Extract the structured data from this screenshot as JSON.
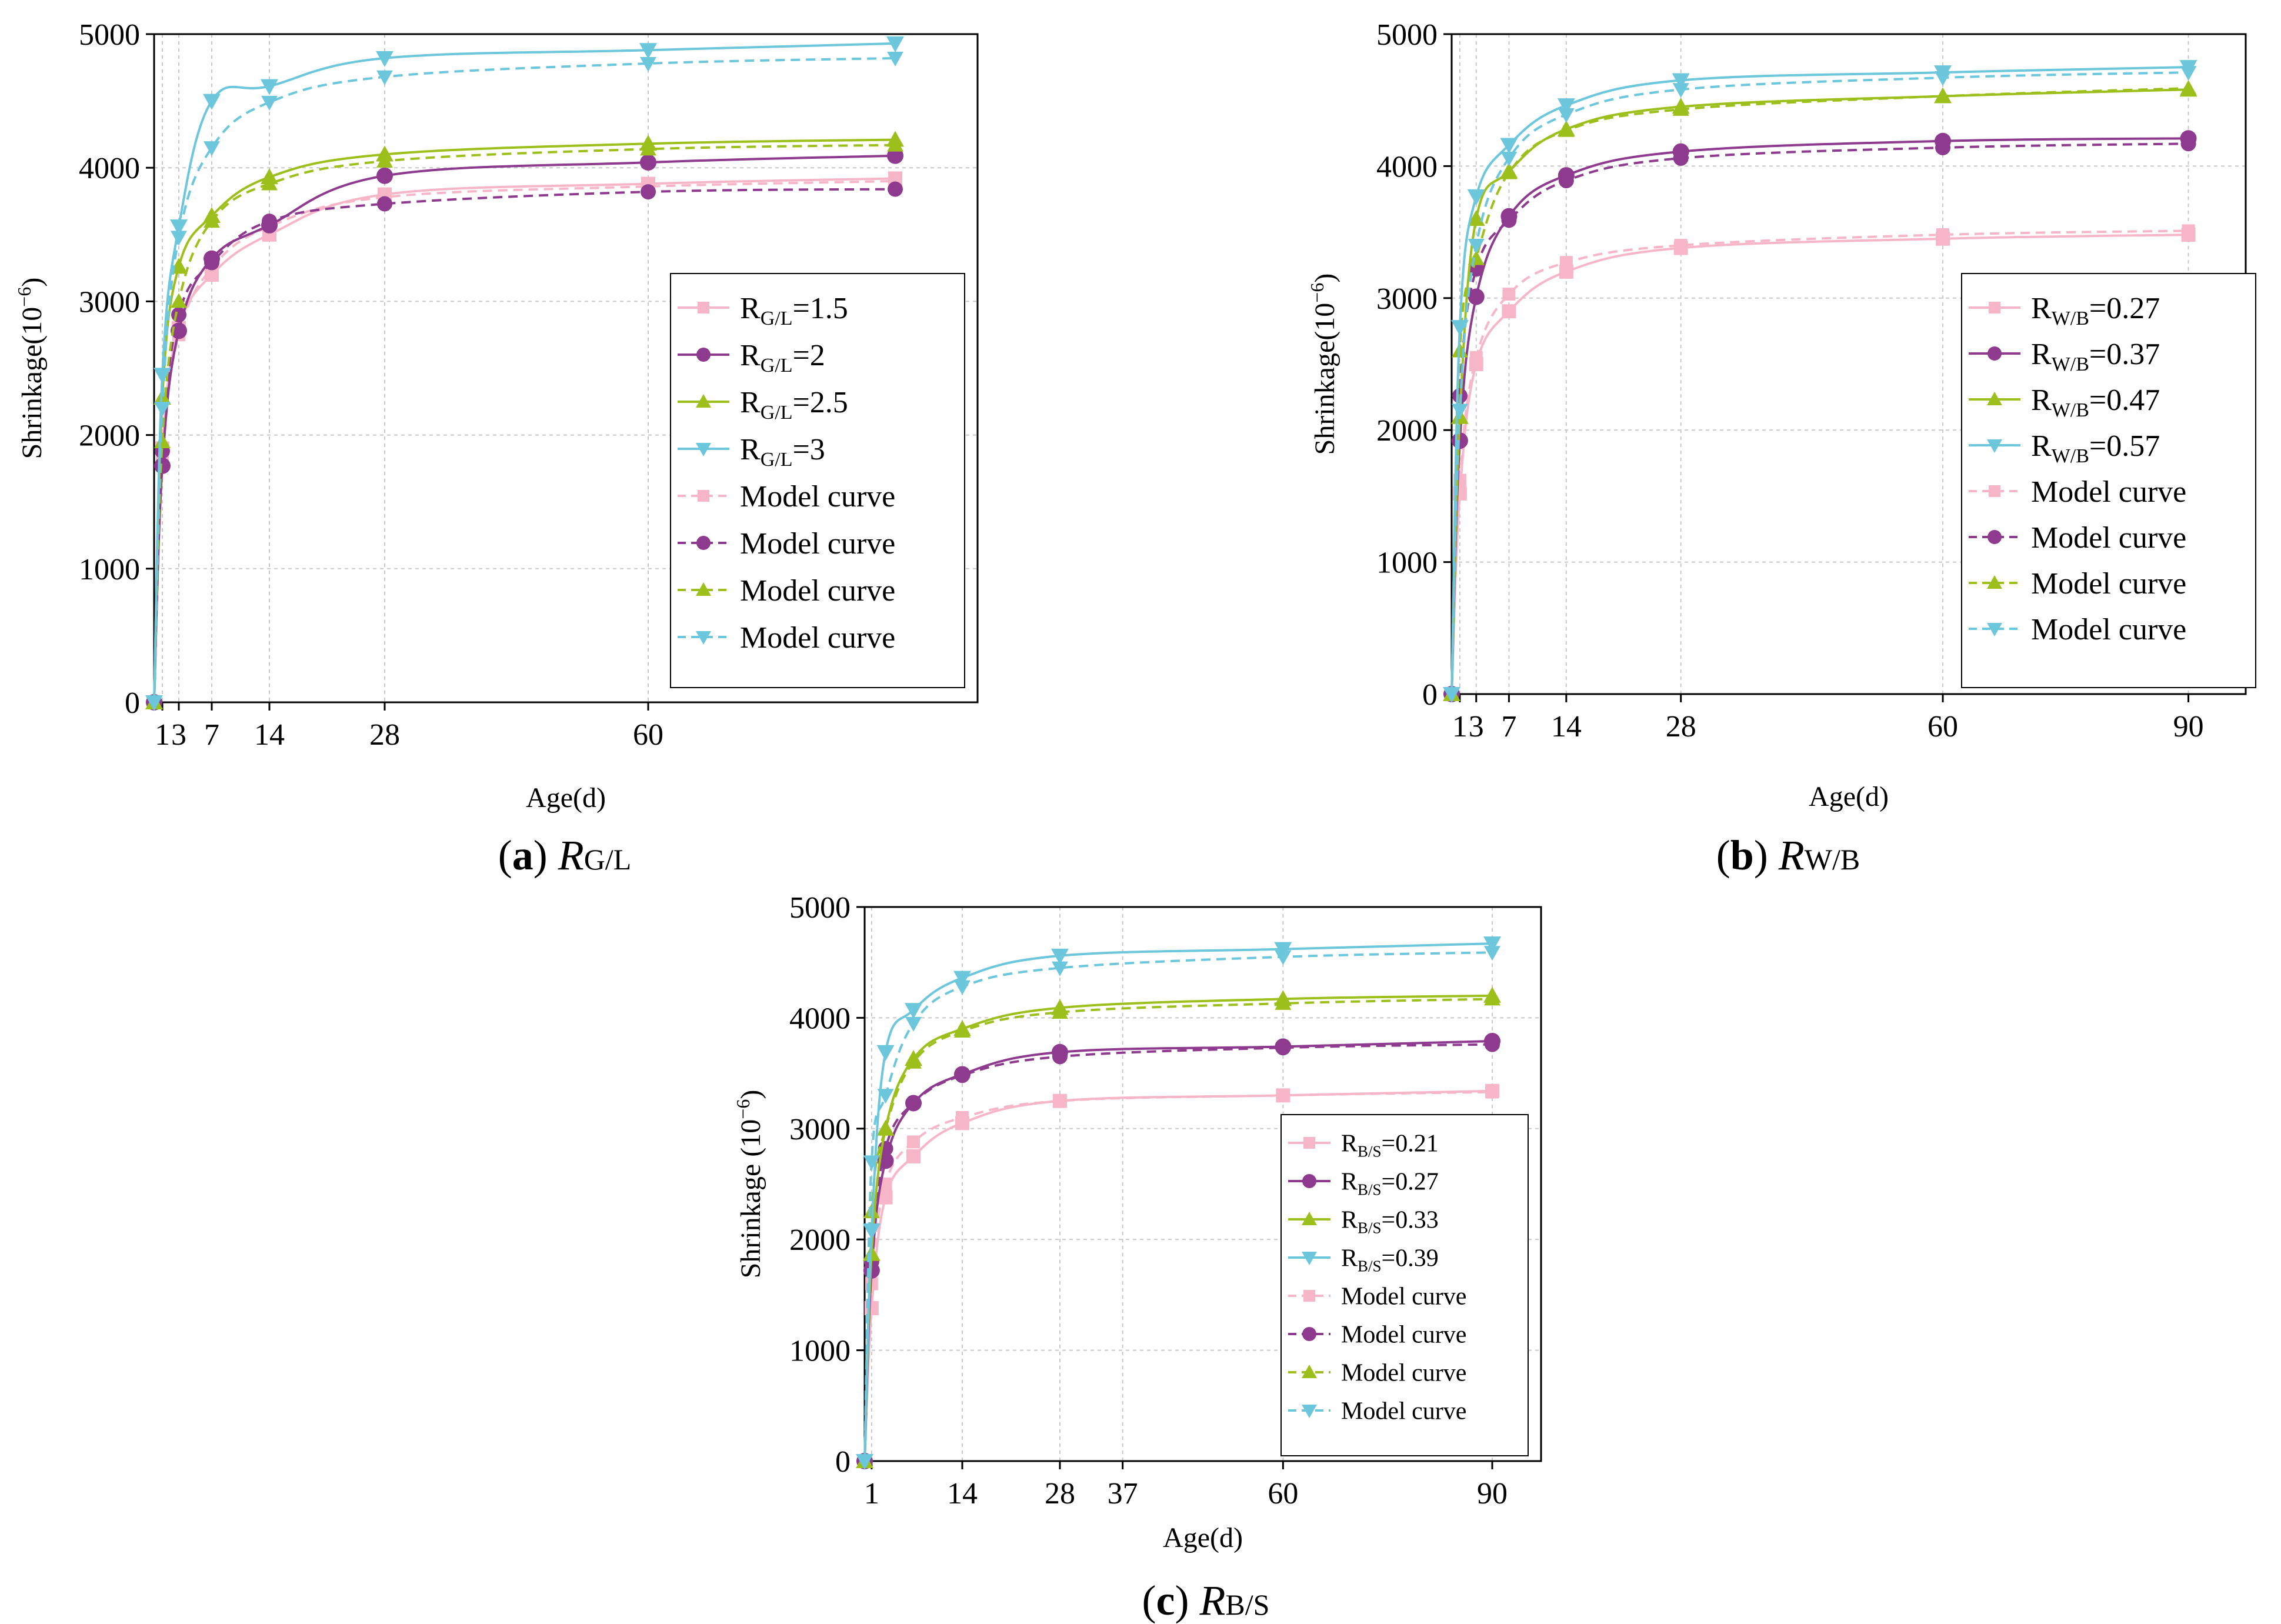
{
  "chart_data": [
    {
      "type": "line",
      "id": "a",
      "caption_letter": "a",
      "caption_main": "R",
      "caption_sub": "G/L",
      "xlabel": "Age(d)",
      "ylabel": "Shrinkage(10",
      "ylabel_sup": "−6",
      "ylabel_tail": ")",
      "xlim": [
        0,
        100
      ],
      "ylim": [
        0,
        5000
      ],
      "xticks": [
        1,
        3,
        7,
        14,
        28,
        60
      ],
      "yticks": [
        0,
        1000,
        2000,
        3000,
        4000,
        5000
      ],
      "x": [
        0,
        1,
        3,
        7,
        14,
        28,
        60,
        90
      ],
      "legend_prefix": "R",
      "series": [
        {
          "name": "R G/L=1.5",
          "sub": "G/L",
          "value": "=1.5",
          "color": "#f7b6c8",
          "marker": "square",
          "values": [
            0,
            1900,
            2800,
            3200,
            3500,
            3800,
            3880,
            3920
          ],
          "model": [
            0,
            1820,
            2750,
            3250,
            3560,
            3780,
            3860,
            3900
          ]
        },
        {
          "name": "R G/L=2",
          "sub": "G/L",
          "value": "=2",
          "color": "#8e3a8e",
          "marker": "circle",
          "values": [
            0,
            1770,
            2780,
            3320,
            3570,
            3940,
            4040,
            4090
          ],
          "model": [
            0,
            1880,
            2900,
            3290,
            3600,
            3730,
            3820,
            3840
          ]
        },
        {
          "name": "R G/L=2.5",
          "sub": "G/L",
          "value": "=2.5",
          "color": "#9cbf1b",
          "marker": "triangle-up",
          "values": [
            0,
            2280,
            3260,
            3640,
            3930,
            4100,
            4180,
            4210
          ],
          "model": [
            0,
            1950,
            3000,
            3600,
            3880,
            4050,
            4140,
            4170
          ]
        },
        {
          "name": "R G/L=3",
          "sub": "G/L",
          "value": "=3",
          "color": "#6cc6dc",
          "marker": "triangle-down",
          "values": [
            0,
            2450,
            3560,
            4500,
            4610,
            4820,
            4880,
            4930
          ],
          "model": [
            0,
            2200,
            3480,
            4150,
            4490,
            4680,
            4780,
            4820
          ]
        }
      ],
      "model_label": "Model curve"
    },
    {
      "type": "line",
      "id": "b",
      "caption_letter": "b",
      "caption_main": "R",
      "caption_sub": "W/B",
      "xlabel": "Age(d)",
      "ylabel": "Shrinkage(10",
      "ylabel_sup": "−6",
      "ylabel_tail": ")",
      "xlim": [
        0,
        97
      ],
      "ylim": [
        0,
        5000
      ],
      "xticks": [
        1,
        3,
        7,
        14,
        28,
        60,
        90
      ],
      "yticks": [
        0,
        1000,
        2000,
        3000,
        4000,
        5000
      ],
      "x": [
        0,
        1,
        3,
        7,
        14,
        28,
        60,
        90
      ],
      "legend_prefix": "R",
      "series": [
        {
          "name": "R W/B=0.27",
          "sub": "W/B",
          "value": "=0.27",
          "color": "#f7b6c8",
          "marker": "square",
          "values": [
            0,
            1520,
            2500,
            2900,
            3200,
            3380,
            3450,
            3480
          ],
          "model": [
            0,
            1620,
            2550,
            3030,
            3270,
            3400,
            3480,
            3510
          ]
        },
        {
          "name": "R W/B=0.37",
          "sub": "W/B",
          "value": "=0.37",
          "color": "#8e3a8e",
          "marker": "circle",
          "values": [
            0,
            1920,
            3010,
            3620,
            3930,
            4110,
            4190,
            4210
          ],
          "model": [
            0,
            2260,
            3220,
            3590,
            3890,
            4060,
            4140,
            4170
          ]
        },
        {
          "name": "R W/B=0.47",
          "sub": "W/B",
          "value": "=0.47",
          "color": "#9cbf1b",
          "marker": "triangle-up",
          "values": [
            0,
            2100,
            3600,
            3960,
            4280,
            4450,
            4530,
            4580
          ],
          "model": [
            0,
            2600,
            3300,
            3950,
            4270,
            4430,
            4530,
            4590
          ]
        },
        {
          "name": "R W/B=0.57",
          "sub": "W/B",
          "value": "=0.57",
          "color": "#6cc6dc",
          "marker": "triangle-down",
          "values": [
            0,
            2780,
            3770,
            4160,
            4460,
            4650,
            4710,
            4750
          ],
          "model": [
            0,
            2150,
            3400,
            4060,
            4390,
            4580,
            4670,
            4710
          ]
        }
      ],
      "model_label": "Model curve"
    },
    {
      "type": "line",
      "id": "c",
      "caption_letter": "c",
      "caption_main": "R",
      "caption_sub": "B/S",
      "xlabel": "Age(d)",
      "ylabel": "Shrinkage  (10",
      "ylabel_sup": "−6",
      "ylabel_tail": ")",
      "xlim": [
        0,
        97
      ],
      "ylim": [
        0,
        5000
      ],
      "xticks": [
        1,
        14,
        28,
        37,
        60,
        90
      ],
      "yticks": [
        0,
        1000,
        2000,
        3000,
        4000,
        5000
      ],
      "x": [
        0,
        1,
        3,
        7,
        14,
        28,
        60,
        90
      ],
      "legend_prefix": "R",
      "series": [
        {
          "name": "R B/S=0.21",
          "sub": "B/S",
          "value": "=0.21",
          "color": "#f7b6c8",
          "marker": "square",
          "values": [
            0,
            1380,
            2380,
            2750,
            3050,
            3250,
            3300,
            3340
          ],
          "model": [
            0,
            1600,
            2500,
            2880,
            3100,
            3250,
            3300,
            3330
          ]
        },
        {
          "name": "R B/S=0.27",
          "sub": "B/S",
          "value": "=0.27",
          "color": "#8e3a8e",
          "marker": "circle",
          "values": [
            0,
            1720,
            2710,
            3230,
            3490,
            3690,
            3740,
            3790
          ],
          "model": [
            0,
            1800,
            2820,
            3230,
            3480,
            3650,
            3730,
            3760
          ]
        },
        {
          "name": "R B/S=0.33",
          "sub": "B/S",
          "value": "=0.33",
          "color": "#9cbf1b",
          "marker": "triangle-up",
          "values": [
            0,
            1870,
            3000,
            3630,
            3900,
            4090,
            4170,
            4200
          ],
          "model": [
            0,
            2250,
            3000,
            3600,
            3880,
            4050,
            4130,
            4170
          ]
        },
        {
          "name": "R B/S=0.39",
          "sub": "B/S",
          "value": "=0.39",
          "color": "#6cc6dc",
          "marker": "triangle-down",
          "values": [
            0,
            2080,
            3690,
            4070,
            4360,
            4560,
            4620,
            4670
          ],
          "model": [
            0,
            2700,
            3300,
            3950,
            4280,
            4450,
            4550,
            4590
          ]
        }
      ],
      "model_label": "Model curve"
    }
  ]
}
